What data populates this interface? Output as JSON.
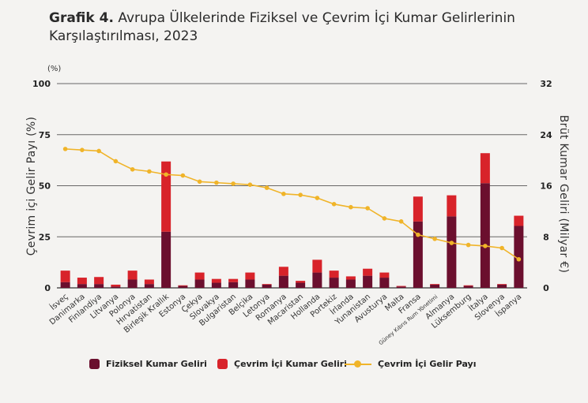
{
  "title": {
    "prefix": "Grafik 4.",
    "text": "Avrupa Ülkelerinde Fiziksel ve Çevrim İçi Kumar Gelirlerinin Karşılaştırılması, 2023"
  },
  "colors": {
    "physical": "#6b0f2e",
    "online": "#d8232a",
    "share": "#f0b429",
    "grid": "#666666"
  },
  "chart_data": {
    "type": "bar",
    "stacked": true,
    "categories": [
      "İsveç",
      "Danimarka",
      "Finlandiya",
      "Litvanya",
      "Polonya",
      "Hırvatistan",
      "Birleşik Krallık",
      "Estonya",
      "Çekya",
      "Slovakya",
      "Bulgaristan",
      "Belçika",
      "Letonya",
      "Romanya",
      "Macaristan",
      "Hollanda",
      "Portekiz",
      "İrlanda",
      "Yunanistan",
      "Avusturya",
      "Malta",
      "Fransa",
      "Güney Kıbrıs Rum Yönetimi",
      "Almanya",
      "Lüksemburg",
      "İtalya",
      "Slovenya",
      "İspanya"
    ],
    "series": [
      {
        "name": "Fiziksel Kumar Geliri",
        "axis": "right",
        "values": [
          0.9,
          0.6,
          0.6,
          0.2,
          1.3,
          0.6,
          8.8,
          0.3,
          1.3,
          0.8,
          0.9,
          1.3,
          0.5,
          1.9,
          0.8,
          2.4,
          1.6,
          1.3,
          1.9,
          1.6,
          0.2,
          10.4,
          0.5,
          11.2,
          0.3,
          16.4,
          0.5,
          9.7
        ]
      },
      {
        "name": "Çevrim İçi Kumar Geliri",
        "axis": "right",
        "values": [
          1.8,
          1.0,
          1.1,
          0.3,
          1.4,
          0.7,
          11.0,
          0.1,
          1.1,
          0.6,
          0.5,
          1.1,
          0.1,
          1.4,
          0.3,
          2.0,
          1.1,
          0.5,
          1.1,
          0.8,
          0.1,
          3.9,
          0.1,
          3.3,
          0.1,
          4.7,
          0.1,
          1.6
        ]
      },
      {
        "name": "Çevrim İçi Gelir Payı",
        "axis": "left",
        "type": "line",
        "values": [
          68,
          67.5,
          67,
          62,
          58,
          57,
          55.5,
          55,
          52,
          51.5,
          51,
          50.5,
          49,
          46,
          45.5,
          44,
          41,
          39.5,
          39,
          34,
          32.5,
          26,
          24,
          22,
          21,
          20.5,
          19.5,
          14
        ]
      }
    ],
    "axes": {
      "left": {
        "label": "Çevrim içi Gelir Payı (%)",
        "unit": "(%)",
        "ylim": [
          0,
          100
        ],
        "ticks": [
          "0",
          "25",
          "50",
          "75",
          "100"
        ]
      },
      "right": {
        "label": "Brüt Kumar Geliri (Milyar €)",
        "ylim": [
          0,
          32
        ],
        "ticks": [
          "0",
          "8",
          "16",
          "24",
          "32"
        ]
      }
    },
    "grid": true,
    "legend": "bottom"
  }
}
